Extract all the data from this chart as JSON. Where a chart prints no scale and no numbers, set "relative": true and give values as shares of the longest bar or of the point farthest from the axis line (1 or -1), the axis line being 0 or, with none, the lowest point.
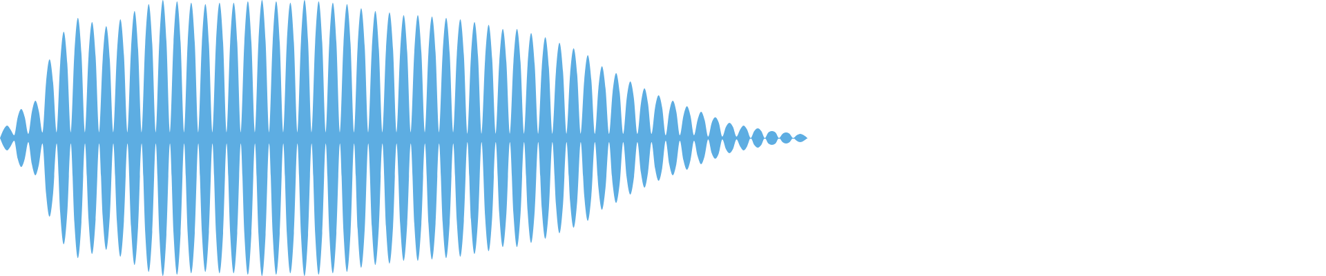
{
  "chart_data": {
    "type": "area",
    "relative": true,
    "categories": [
      null,
      null,
      null,
      null,
      null,
      null,
      null,
      null,
      null,
      null,
      null,
      null,
      null,
      null,
      null,
      null,
      null,
      null,
      null,
      null,
      null,
      null,
      null,
      null,
      null,
      null,
      null,
      null,
      null,
      null,
      null,
      null,
      null,
      null,
      null,
      null,
      null,
      null,
      null,
      null,
      null,
      null,
      null,
      null,
      null,
      null,
      null,
      null,
      null,
      null,
      null,
      null,
      null,
      null,
      null,
      null,
      null,
      null,
      null,
      null,
      null,
      null,
      null,
      null,
      null,
      null,
      null,
      null,
      null,
      null,
      null,
      null,
      null,
      null,
      null,
      null,
      null,
      null,
      null,
      null,
      null,
      null,
      null,
      null,
      null,
      null,
      null,
      null,
      null,
      null,
      null,
      null,
      null,
      null,
      null,
      null,
      null,
      null,
      null,
      null,
      null,
      null,
      null,
      null,
      null,
      null,
      null,
      null,
      null,
      null,
      null,
      null,
      null,
      null,
      null,
      null,
      null,
      null,
      null,
      null,
      null,
      null,
      null,
      null,
      null,
      null,
      null,
      null,
      null,
      null,
      null,
      null,
      null,
      null,
      null,
      null,
      null,
      null,
      null,
      null,
      null,
      null,
      null,
      null,
      null,
      null,
      null,
      null,
      null,
      null,
      null,
      null,
      null,
      null,
      null,
      null,
      null,
      null,
      null,
      null,
      null,
      null,
      null,
      null,
      null,
      null,
      null,
      null,
      null,
      null,
      null,
      null,
      null,
      null,
      null,
      null,
      null,
      null,
      null,
      null,
      null,
      null,
      null,
      null,
      null,
      null,
      null,
      null,
      null,
      null,
      null,
      null,
      null,
      null,
      null,
      null,
      null,
      null,
      null,
      null,
      null,
      null,
      null,
      null,
      null,
      null,
      null,
      null,
      null,
      null,
      null,
      null,
      null,
      null,
      null,
      null,
      null,
      null,
      null,
      null,
      null,
      null,
      null,
      null,
      null,
      null,
      null,
      null,
      null
    ],
    "series": [
      {
        "color": "#5dade2",
        "values": [
          0,
          0.06,
          0.09,
          0.06,
          0.02,
          0.15,
          0.21,
          0.15,
          0.03,
          0.19,
          0.27,
          0.19,
          0.04,
          0.4,
          0.57,
          0.4,
          0.04,
          0.54,
          0.77,
          0.54,
          0.04,
          0.61,
          0.87,
          0.61,
          0.04,
          0.59,
          0.84,
          0.59,
          0.04,
          0.57,
          0.81,
          0.57,
          0.04,
          0.6,
          0.86,
          0.6,
          0.04,
          0.64,
          0.92,
          0.64,
          0.04,
          0.68,
          0.97,
          0.68,
          0.04,
          0.7,
          1.0,
          0.7,
          0.04,
          0.69,
          0.99,
          0.69,
          0.04,
          0.69,
          0.98,
          0.69,
          0.04,
          0.68,
          0.97,
          0.68,
          0.04,
          0.69,
          0.98,
          0.69,
          0.04,
          0.69,
          0.98,
          0.69,
          0.04,
          0.69,
          0.99,
          0.69,
          0.04,
          0.7,
          1.0,
          0.7,
          0.04,
          0.69,
          0.99,
          0.69,
          0.04,
          0.69,
          0.98,
          0.69,
          0.04,
          0.7,
          1.0,
          0.7,
          0.04,
          0.69,
          0.99,
          0.69,
          0.04,
          0.69,
          0.98,
          0.69,
          0.04,
          0.68,
          0.97,
          0.68,
          0.04,
          0.66,
          0.94,
          0.66,
          0.04,
          0.64,
          0.92,
          0.64,
          0.04,
          0.64,
          0.91,
          0.64,
          0.04,
          0.62,
          0.89,
          0.62,
          0.04,
          0.62,
          0.89,
          0.62,
          0.04,
          0.62,
          0.88,
          0.62,
          0.04,
          0.61,
          0.87,
          0.61,
          0.04,
          0.6,
          0.86,
          0.6,
          0.03,
          0.59,
          0.84,
          0.59,
          0.03,
          0.57,
          0.82,
          0.57,
          0.03,
          0.55,
          0.79,
          0.55,
          0.03,
          0.55,
          0.79,
          0.55,
          0.03,
          0.53,
          0.76,
          0.53,
          0.03,
          0.51,
          0.73,
          0.51,
          0.03,
          0.48,
          0.69,
          0.48,
          0.03,
          0.46,
          0.65,
          0.46,
          0.03,
          0.42,
          0.6,
          0.42,
          0.03,
          0.36,
          0.52,
          0.36,
          0.03,
          0.33,
          0.47,
          0.33,
          0.03,
          0.29,
          0.41,
          0.29,
          0.03,
          0.25,
          0.36,
          0.25,
          0.03,
          0.22,
          0.31,
          0.22,
          0.02,
          0.19,
          0.27,
          0.19,
          0.02,
          0.16,
          0.23,
          0.16,
          0.02,
          0.13,
          0.19,
          0.13,
          0.01,
          0.11,
          0.15,
          0.11,
          0.01,
          0.08,
          0.11,
          0.08,
          0.01,
          0.06,
          0.09,
          0.06,
          0,
          0.05,
          0.07,
          0.05,
          0,
          0.04,
          0.05,
          0.04,
          0,
          0.03,
          0.04,
          0.03,
          0,
          0.02,
          0.03,
          0.02,
          0
        ]
      },
      {
        "color": "#5dade2",
        "values": [
          0,
          -0.06,
          -0.09,
          -0.06,
          -0.02,
          -0.15,
          -0.21,
          -0.15,
          -0.03,
          -0.19,
          -0.27,
          -0.19,
          -0.04,
          -0.4,
          -0.57,
          -0.4,
          -0.04,
          -0.54,
          -0.77,
          -0.54,
          -0.04,
          -0.61,
          -0.87,
          -0.61,
          -0.04,
          -0.59,
          -0.84,
          -0.59,
          -0.04,
          -0.57,
          -0.81,
          -0.57,
          -0.04,
          -0.6,
          -0.86,
          -0.6,
          -0.04,
          -0.64,
          -0.92,
          -0.64,
          -0.04,
          -0.68,
          -0.97,
          -0.68,
          -0.04,
          -0.7,
          -1.0,
          -0.7,
          -0.04,
          -0.69,
          -0.99,
          -0.69,
          -0.04,
          -0.69,
          -0.98,
          -0.69,
          -0.04,
          -0.68,
          -0.97,
          -0.68,
          -0.04,
          -0.69,
          -0.98,
          -0.69,
          -0.04,
          -0.69,
          -0.98,
          -0.69,
          -0.04,
          -0.69,
          -0.99,
          -0.69,
          -0.04,
          -0.7,
          -1.0,
          -0.7,
          -0.04,
          -0.69,
          -0.99,
          -0.69,
          -0.04,
          -0.69,
          -0.98,
          -0.69,
          -0.04,
          -0.7,
          -1.0,
          -0.7,
          -0.04,
          -0.69,
          -0.99,
          -0.69,
          -0.04,
          -0.69,
          -0.98,
          -0.69,
          -0.04,
          -0.68,
          -0.97,
          -0.68,
          -0.04,
          -0.66,
          -0.94,
          -0.66,
          -0.04,
          -0.64,
          -0.92,
          -0.64,
          -0.04,
          -0.64,
          -0.91,
          -0.64,
          -0.04,
          -0.62,
          -0.89,
          -0.62,
          -0.04,
          -0.62,
          -0.89,
          -0.62,
          -0.04,
          -0.62,
          -0.88,
          -0.62,
          -0.04,
          -0.61,
          -0.87,
          -0.61,
          -0.04,
          -0.6,
          -0.86,
          -0.6,
          -0.03,
          -0.59,
          -0.84,
          -0.59,
          -0.03,
          -0.57,
          -0.82,
          -0.57,
          -0.03,
          -0.55,
          -0.79,
          -0.55,
          -0.03,
          -0.55,
          -0.79,
          -0.55,
          -0.03,
          -0.53,
          -0.76,
          -0.53,
          -0.03,
          -0.51,
          -0.73,
          -0.51,
          -0.03,
          -0.48,
          -0.69,
          -0.48,
          -0.03,
          -0.46,
          -0.65,
          -0.46,
          -0.03,
          -0.42,
          -0.6,
          -0.42,
          -0.03,
          -0.36,
          -0.52,
          -0.36,
          -0.03,
          -0.33,
          -0.47,
          -0.33,
          -0.03,
          -0.29,
          -0.41,
          -0.29,
          -0.03,
          -0.25,
          -0.36,
          -0.25,
          -0.03,
          -0.22,
          -0.31,
          -0.22,
          -0.02,
          -0.19,
          -0.27,
          -0.19,
          -0.02,
          -0.16,
          -0.23,
          -0.16,
          -0.02,
          -0.13,
          -0.19,
          -0.13,
          -0.01,
          -0.11,
          -0.15,
          -0.11,
          -0.01,
          -0.08,
          -0.11,
          -0.08,
          -0.01,
          -0.06,
          -0.09,
          -0.06,
          0,
          -0.05,
          -0.07,
          -0.05,
          0,
          -0.04,
          -0.05,
          -0.04,
          0,
          -0.03,
          -0.04,
          -0.03,
          0,
          -0.02,
          -0.03,
          -0.02,
          0
        ]
      }
    ]
  }
}
